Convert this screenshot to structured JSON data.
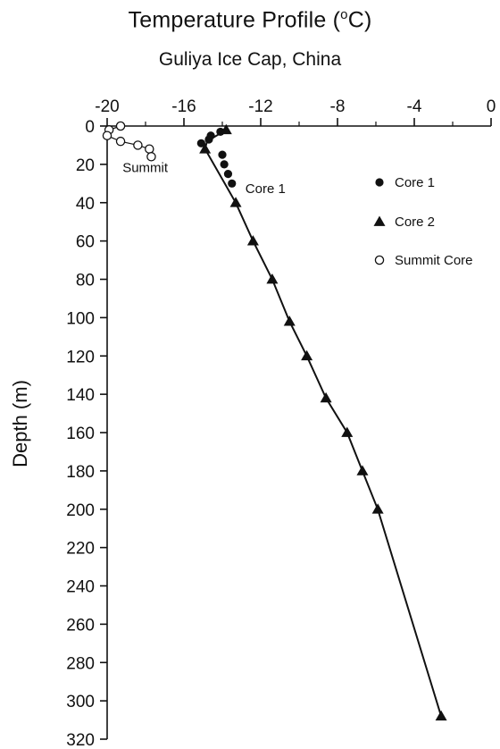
{
  "chart_data": {
    "type": "scatter",
    "title": "Temperature Profile (",
    "title_superscript": "o",
    "title_suffix": "C)",
    "subtitle": "Guliya Ice Cap, China",
    "xlabel": "",
    "ylabel": "Depth (m)",
    "xlim": [
      -20,
      0
    ],
    "ylim": [
      0,
      320
    ],
    "y_inverted": true,
    "x_axis_position": "top",
    "x_ticks": [
      "-20",
      "-16",
      "-12",
      "-8",
      "-4",
      "0"
    ],
    "x_tick_values": [
      -20,
      -16,
      -12,
      -8,
      -4,
      0
    ],
    "y_ticks": [
      "0",
      "20",
      "40",
      "60",
      "80",
      "100",
      "120",
      "140",
      "160",
      "180",
      "200",
      "220",
      "240",
      "260",
      "280",
      "300",
      "320"
    ],
    "y_tick_values": [
      0,
      20,
      40,
      60,
      80,
      100,
      120,
      140,
      160,
      180,
      200,
      220,
      240,
      260,
      280,
      300,
      320
    ],
    "legend_position": "right",
    "series": [
      {
        "name": "Core 1",
        "marker": "filled-circle",
        "points": [
          {
            "x": -14.1,
            "y": 3
          },
          {
            "x": -14.6,
            "y": 5
          },
          {
            "x": -14.7,
            "y": 7
          },
          {
            "x": -15.1,
            "y": 9
          },
          {
            "x": -14.0,
            "y": 15
          },
          {
            "x": -13.9,
            "y": 20
          },
          {
            "x": -13.7,
            "y": 25
          },
          {
            "x": -13.5,
            "y": 30
          }
        ]
      },
      {
        "name": "Core 2",
        "marker": "filled-triangle",
        "points": [
          {
            "x": -13.8,
            "y": 2
          },
          {
            "x": -14.9,
            "y": 12
          },
          {
            "x": -13.3,
            "y": 40
          },
          {
            "x": -12.4,
            "y": 60
          },
          {
            "x": -11.4,
            "y": 80
          },
          {
            "x": -10.5,
            "y": 102
          },
          {
            "x": -9.6,
            "y": 120
          },
          {
            "x": -8.6,
            "y": 142
          },
          {
            "x": -7.5,
            "y": 160
          },
          {
            "x": -6.7,
            "y": 180
          },
          {
            "x": -5.9,
            "y": 200
          },
          {
            "x": -2.6,
            "y": 308
          }
        ]
      },
      {
        "name": "Summit Core",
        "marker": "open-circle",
        "points": [
          {
            "x": -19.3,
            "y": 0
          },
          {
            "x": -19.9,
            "y": 2
          },
          {
            "x": -20.0,
            "y": 5
          },
          {
            "x": -19.3,
            "y": 8
          },
          {
            "x": -18.4,
            "y": 10
          },
          {
            "x": -17.8,
            "y": 12
          },
          {
            "x": -17.7,
            "y": 16
          }
        ]
      }
    ],
    "trend_line": [
      {
        "x": -13.8,
        "y": 2
      },
      {
        "x": -14.8,
        "y": 8
      },
      {
        "x": -14.9,
        "y": 12
      },
      {
        "x": -13.3,
        "y": 40
      },
      {
        "x": -12.4,
        "y": 60
      },
      {
        "x": -11.4,
        "y": 80
      },
      {
        "x": -10.5,
        "y": 102
      },
      {
        "x": -9.6,
        "y": 120
      },
      {
        "x": -8.6,
        "y": 142
      },
      {
        "x": -7.5,
        "y": 160
      },
      {
        "x": -6.7,
        "y": 180
      },
      {
        "x": -5.9,
        "y": 200
      },
      {
        "x": -2.6,
        "y": 308
      }
    ],
    "annotations": {
      "summit_label": "Summit",
      "core1_label": "Core 1"
    },
    "colors": {
      "ink": "#111111",
      "background": "#ffffff"
    }
  }
}
